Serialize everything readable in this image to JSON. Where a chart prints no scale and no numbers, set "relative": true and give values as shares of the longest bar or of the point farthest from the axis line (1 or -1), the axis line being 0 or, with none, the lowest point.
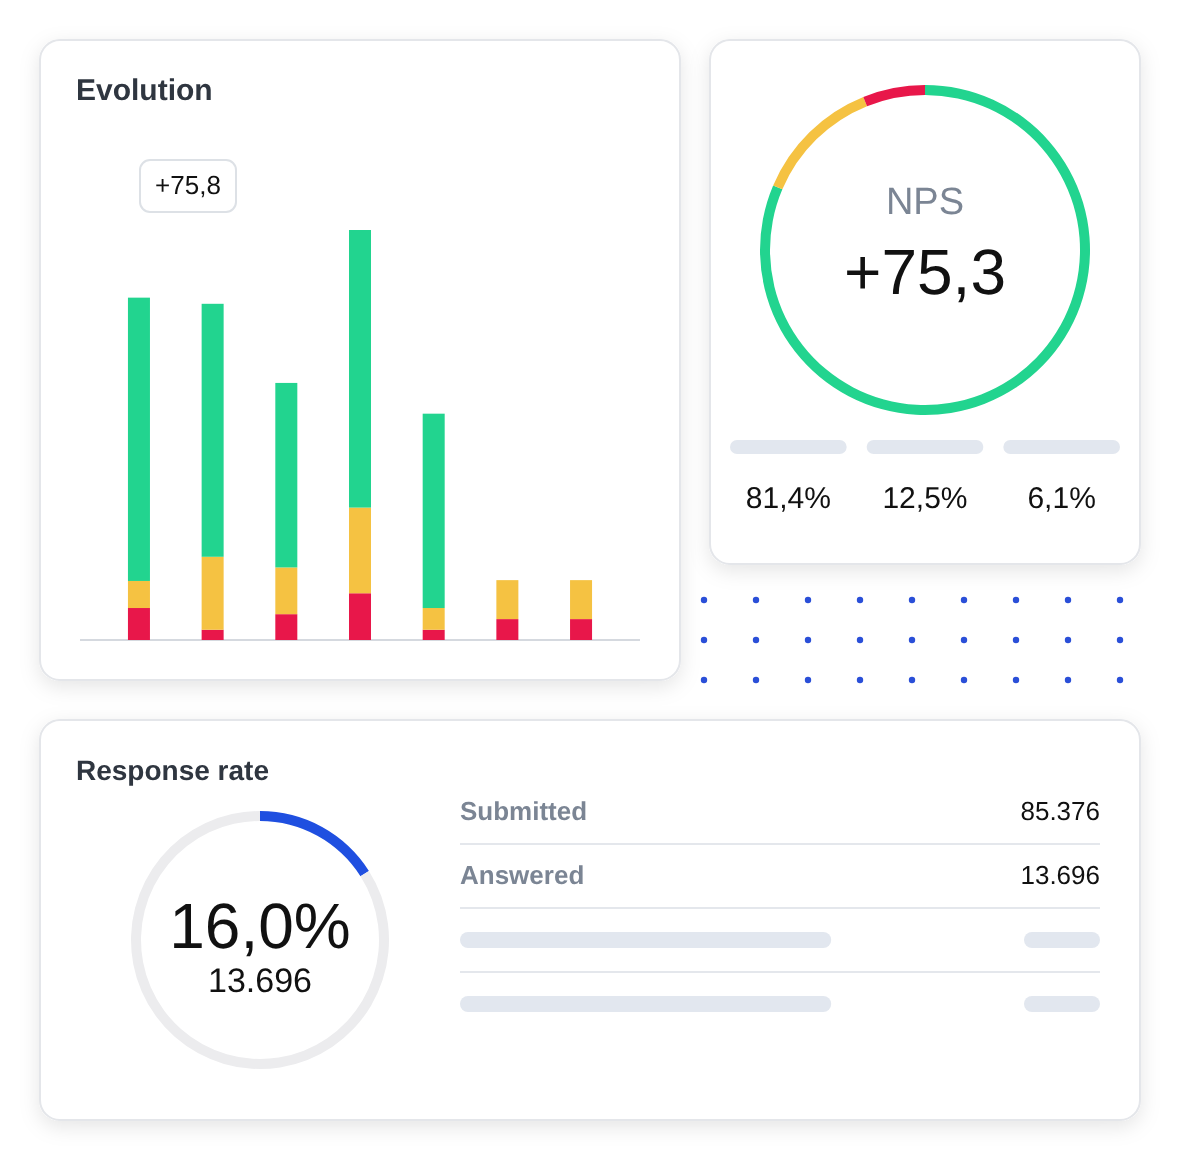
{
  "chart_data": [
    {
      "type": "bar",
      "title": "Evolution",
      "stacked": true,
      "relative": true,
      "categories": [
        null,
        null,
        null,
        null,
        null,
        null,
        null
      ],
      "series": [
        {
          "color": "#e8174a",
          "values": [
            0.078,
            0.025,
            0.063,
            0.114,
            0.025,
            0.051,
            0.051
          ]
        },
        {
          "color": "#f5c242",
          "values": [
            0.066,
            0.178,
            0.114,
            0.209,
            0.053,
            0.095,
            0.095
          ]
        },
        {
          "color": "#22d48f",
          "values": [
            0.691,
            0.617,
            0.45,
            0.677,
            0.474,
            null,
            null
          ]
        }
      ],
      "annotations": [
        "+75,8"
      ]
    },
    {
      "type": "donut",
      "title": "NPS",
      "categories": [
        null,
        null,
        null
      ],
      "values": [
        81.4,
        12.5,
        6.1
      ],
      "colors": [
        "#22d48f",
        "#f5c242",
        "#e8174a"
      ],
      "annotations": [
        "+75,3",
        "81,4%",
        "12,5%",
        "6,1%"
      ]
    },
    {
      "type": "donut",
      "title": "Response rate",
      "categories": [
        null,
        null
      ],
      "values": [
        16.0,
        84.0
      ],
      "colors": [
        "#1f4fe0",
        "#ececee"
      ],
      "annotations": [
        "16,0%",
        "13.696"
      ]
    },
    {
      "type": "other",
      "annotations": [
        "Submitted",
        "85.376",
        "Answered",
        "13.696"
      ]
    }
  ]
}
